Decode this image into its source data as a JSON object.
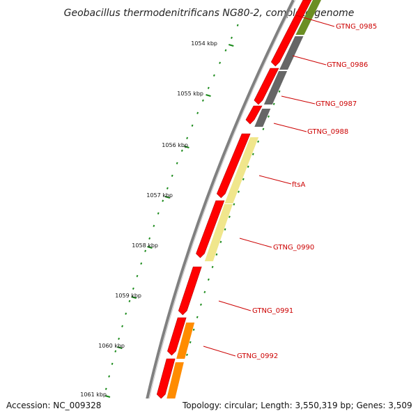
{
  "title": "Geobacillus thermodenitrificans NG80-2, complete genome",
  "footer": {
    "accession": "Accession: NC_009328",
    "topology": "Topology: circular; Length: 3,550,319 bp; Genes: 3,509"
  },
  "ticks": [
    "1054 kbp",
    "1055 kbp",
    "1056 kbp",
    "1057 kbp",
    "1058 kbp",
    "1059 kbp",
    "1060 kbp",
    "1061 kbp"
  ],
  "gene_labels": [
    "GTNG_0985",
    "GTNG_0986",
    "GTNG_0987",
    "GTNG_0988",
    "ftsA",
    "GTNG_0990",
    "GTNG_0991",
    "GTNG_0992"
  ],
  "colors": {
    "cds_red": "#ff0000",
    "gray_feature": "#666666",
    "olive_feature": "#6b8e23",
    "pale_feature": "#f0e68c",
    "orange_feature": "#ff8c00",
    "tick_green": "#1a8a1a",
    "label_red": "#cc0000",
    "backbone": "#808080"
  }
}
